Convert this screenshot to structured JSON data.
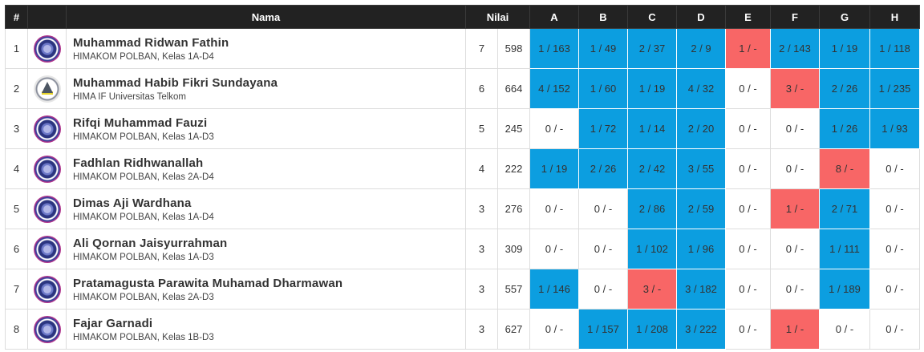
{
  "header": {
    "rank": "#",
    "name": "Nama",
    "score": "Nilai",
    "problems": [
      "A",
      "B",
      "C",
      "D",
      "E",
      "F",
      "G",
      "H"
    ]
  },
  "colors": {
    "accepted": "#0c9ee0",
    "wrong": "#f86666",
    "header_bg": "#222222"
  },
  "rows": [
    {
      "rank": "1",
      "logo": "himakom-logo",
      "name": "Muhammad Ridwan Fathin",
      "institution": "HIMAKOM POLBAN, Kelas 1A-D4",
      "solved": "7",
      "penalty": "598",
      "cells": [
        {
          "text": "1 / 163",
          "status": "ac"
        },
        {
          "text": "1 / 49",
          "status": "ac"
        },
        {
          "text": "2 / 37",
          "status": "ac"
        },
        {
          "text": "2 / 9",
          "status": "ac"
        },
        {
          "text": "1 / -",
          "status": "wa"
        },
        {
          "text": "2 / 143",
          "status": "ac"
        },
        {
          "text": "1 / 19",
          "status": "ac"
        },
        {
          "text": "1 / 118",
          "status": "ac"
        }
      ]
    },
    {
      "rank": "2",
      "logo": "himaif-logo",
      "name": "Muhammad Habib Fikri Sundayana",
      "institution": "HIMA IF Universitas Telkom",
      "solved": "6",
      "penalty": "664",
      "cells": [
        {
          "text": "4 / 152",
          "status": "ac"
        },
        {
          "text": "1 / 60",
          "status": "ac"
        },
        {
          "text": "1 / 19",
          "status": "ac"
        },
        {
          "text": "4 / 32",
          "status": "ac"
        },
        {
          "text": "0 / -",
          "status": "na"
        },
        {
          "text": "3 / -",
          "status": "wa"
        },
        {
          "text": "2 / 26",
          "status": "ac"
        },
        {
          "text": "1 / 235",
          "status": "ac"
        }
      ]
    },
    {
      "rank": "3",
      "logo": "himakom-logo",
      "name": "Rifqi Muhammad Fauzi",
      "institution": "HIMAKOM POLBAN, Kelas 1A-D3",
      "solved": "5",
      "penalty": "245",
      "cells": [
        {
          "text": "0 / -",
          "status": "na"
        },
        {
          "text": "1 / 72",
          "status": "ac"
        },
        {
          "text": "1 / 14",
          "status": "ac"
        },
        {
          "text": "2 / 20",
          "status": "ac"
        },
        {
          "text": "0 / -",
          "status": "na"
        },
        {
          "text": "0 / -",
          "status": "na"
        },
        {
          "text": "1 / 26",
          "status": "ac"
        },
        {
          "text": "1 / 93",
          "status": "ac"
        }
      ]
    },
    {
      "rank": "4",
      "logo": "himakom-logo",
      "name": "Fadhlan Ridhwanallah",
      "institution": "HIMAKOM POLBAN, Kelas 2A-D4",
      "solved": "4",
      "penalty": "222",
      "cells": [
        {
          "text": "1 / 19",
          "status": "ac"
        },
        {
          "text": "2 / 26",
          "status": "ac"
        },
        {
          "text": "2 / 42",
          "status": "ac"
        },
        {
          "text": "3 / 55",
          "status": "ac"
        },
        {
          "text": "0 / -",
          "status": "na"
        },
        {
          "text": "0 / -",
          "status": "na"
        },
        {
          "text": "8 / -",
          "status": "wa"
        },
        {
          "text": "0 / -",
          "status": "na"
        }
      ]
    },
    {
      "rank": "5",
      "logo": "himakom-logo",
      "name": "Dimas Aji Wardhana",
      "institution": "HIMAKOM POLBAN, Kelas 1A-D4",
      "solved": "3",
      "penalty": "276",
      "cells": [
        {
          "text": "0 / -",
          "status": "na"
        },
        {
          "text": "0 / -",
          "status": "na"
        },
        {
          "text": "2 / 86",
          "status": "ac"
        },
        {
          "text": "2 / 59",
          "status": "ac"
        },
        {
          "text": "0 / -",
          "status": "na"
        },
        {
          "text": "1 / -",
          "status": "wa"
        },
        {
          "text": "2 / 71",
          "status": "ac"
        },
        {
          "text": "0 / -",
          "status": "na"
        }
      ]
    },
    {
      "rank": "6",
      "logo": "himakom-logo",
      "name": "Ali Qornan Jaisyurrahman",
      "institution": "HIMAKOM POLBAN, Kelas 1A-D3",
      "solved": "3",
      "penalty": "309",
      "cells": [
        {
          "text": "0 / -",
          "status": "na"
        },
        {
          "text": "0 / -",
          "status": "na"
        },
        {
          "text": "1 / 102",
          "status": "ac"
        },
        {
          "text": "1 / 96",
          "status": "ac"
        },
        {
          "text": "0 / -",
          "status": "na"
        },
        {
          "text": "0 / -",
          "status": "na"
        },
        {
          "text": "1 / 111",
          "status": "ac"
        },
        {
          "text": "0 / -",
          "status": "na"
        }
      ]
    },
    {
      "rank": "7",
      "logo": "himakom-logo",
      "name": "Pratamagusta Parawita Muhamad Dharmawan",
      "institution": "HIMAKOM POLBAN, Kelas 2A-D3",
      "solved": "3",
      "penalty": "557",
      "cells": [
        {
          "text": "1 / 146",
          "status": "ac"
        },
        {
          "text": "0 / -",
          "status": "na"
        },
        {
          "text": "3 / -",
          "status": "wa"
        },
        {
          "text": "3 / 182",
          "status": "ac"
        },
        {
          "text": "0 / -",
          "status": "na"
        },
        {
          "text": "0 / -",
          "status": "na"
        },
        {
          "text": "1 / 189",
          "status": "ac"
        },
        {
          "text": "0 / -",
          "status": "na"
        }
      ]
    },
    {
      "rank": "8",
      "logo": "himakom-logo",
      "name": "Fajar Garnadi",
      "institution": "HIMAKOM POLBAN, Kelas 1B-D3",
      "solved": "3",
      "penalty": "627",
      "cells": [
        {
          "text": "0 / -",
          "status": "na"
        },
        {
          "text": "1 / 157",
          "status": "ac"
        },
        {
          "text": "1 / 208",
          "status": "ac"
        },
        {
          "text": "3 / 222",
          "status": "ac"
        },
        {
          "text": "0 / -",
          "status": "na"
        },
        {
          "text": "1 / -",
          "status": "wa"
        },
        {
          "text": "0 / -",
          "status": "na"
        },
        {
          "text": "0 / -",
          "status": "na"
        }
      ]
    }
  ]
}
